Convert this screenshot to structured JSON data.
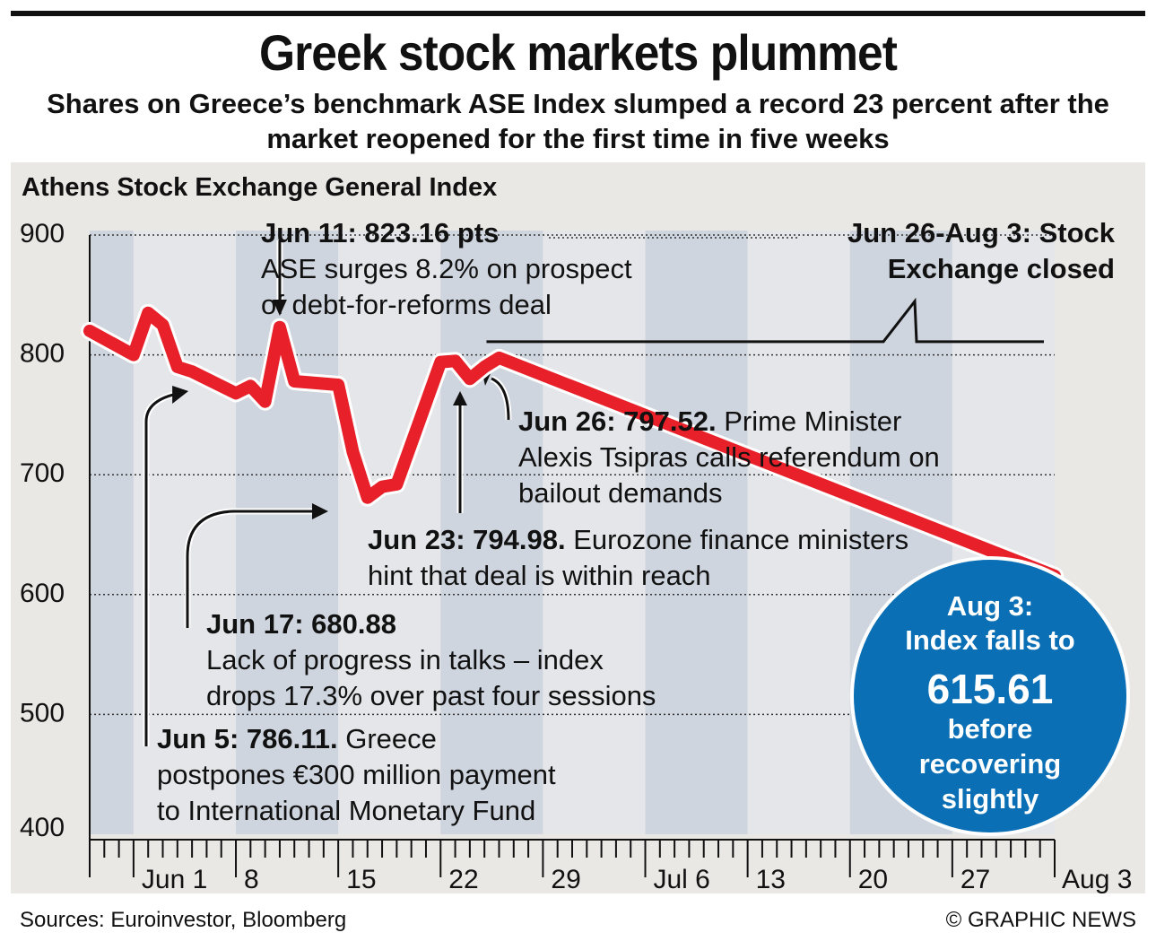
{
  "title": "Greek stock markets plummet",
  "subtitle": "Shares on Greece’s benchmark ASE Index slumped a record 23 percent after the market reopened for the first time in five weeks",
  "source": "Sources: Euroinvestor, Bloomberg",
  "credit": "© GRAPHIC NEWS",
  "chart_data": {
    "type": "line",
    "title": "Athens Stock Exchange General Index",
    "ylim": [
      400,
      900
    ],
    "yticks": [
      400,
      500,
      600,
      700,
      800,
      900
    ],
    "xlim": [
      "2015-05-29",
      "2015-08-03"
    ],
    "xtick_labels": [
      {
        "date": "2015-06-01",
        "label": "Jun 1"
      },
      {
        "date": "2015-06-08",
        "label": "8"
      },
      {
        "date": "2015-06-15",
        "label": "15"
      },
      {
        "date": "2015-06-22",
        "label": "22"
      },
      {
        "date": "2015-06-29",
        "label": "29"
      },
      {
        "date": "2015-07-06",
        "label": "Jul 6"
      },
      {
        "date": "2015-07-13",
        "label": "13"
      },
      {
        "date": "2015-07-20",
        "label": "20"
      },
      {
        "date": "2015-07-27",
        "label": "27"
      },
      {
        "date": "2015-08-03",
        "label": "Aug 3"
      }
    ],
    "series": [
      {
        "color": "#e8202a",
        "points": [
          {
            "date": "2015-05-29",
            "value": 820
          },
          {
            "date": "2015-06-01",
            "value": 800
          },
          {
            "date": "2015-06-02",
            "value": 835
          },
          {
            "date": "2015-06-03",
            "value": 825
          },
          {
            "date": "2015-06-04",
            "value": 790
          },
          {
            "date": "2015-06-05",
            "value": 786.11
          },
          {
            "date": "2015-06-08",
            "value": 768
          },
          {
            "date": "2015-06-09",
            "value": 774
          },
          {
            "date": "2015-06-10",
            "value": 761
          },
          {
            "date": "2015-06-11",
            "value": 823.16
          },
          {
            "date": "2015-06-12",
            "value": 778
          },
          {
            "date": "2015-06-15",
            "value": 775
          },
          {
            "date": "2015-06-16",
            "value": 719
          },
          {
            "date": "2015-06-17",
            "value": 680.88
          },
          {
            "date": "2015-06-18",
            "value": 690
          },
          {
            "date": "2015-06-19",
            "value": 692
          },
          {
            "date": "2015-06-22",
            "value": 794
          },
          {
            "date": "2015-06-23",
            "value": 794.98
          },
          {
            "date": "2015-06-24",
            "value": 780
          },
          {
            "date": "2015-06-25",
            "value": 790
          },
          {
            "date": "2015-06-26",
            "value": 797.52
          },
          {
            "date": "2015-08-03",
            "value": 615.61
          }
        ],
        "closed_period": {
          "from": "2015-06-26",
          "to": "2015-08-03",
          "value": 797.52
        }
      }
    ],
    "annotations": [
      {
        "id": "jun11",
        "head": "Jun 11: 823.16 pts",
        "lines": [
          "ASE surges 8.2% on prospect",
          "of debt-for-reforms deal"
        ]
      },
      {
        "id": "closed",
        "head": "",
        "lines": [
          "Jun 26-Aug 3: Stock",
          "Exchange closed"
        ]
      },
      {
        "id": "jun26",
        "head": "Jun 26: 797.52.",
        "lines": [
          " Prime Minister",
          "Alexis Tsipras calls referendum on",
          "bailout demands"
        ]
      },
      {
        "id": "jun23",
        "head": "Jun 23: 794.98.",
        "lines": [
          " Eurozone finance ministers",
          "hint that deal is within reach"
        ]
      },
      {
        "id": "jun17",
        "head": "Jun 17: 680.88",
        "lines": [
          "Lack of progress in talks – index",
          "drops 17.3% over past four sessions"
        ]
      },
      {
        "id": "jun5",
        "head": "Jun 5: 786.11.",
        "lines": [
          " Greece",
          "postpones €300 million payment",
          "to International Monetary Fund"
        ]
      }
    ],
    "callout": {
      "lines": [
        "Aug 3:",
        "Index falls to",
        "615.61",
        "before",
        "recovering",
        "slightly"
      ],
      "color": "#0a6fb5"
    }
  }
}
